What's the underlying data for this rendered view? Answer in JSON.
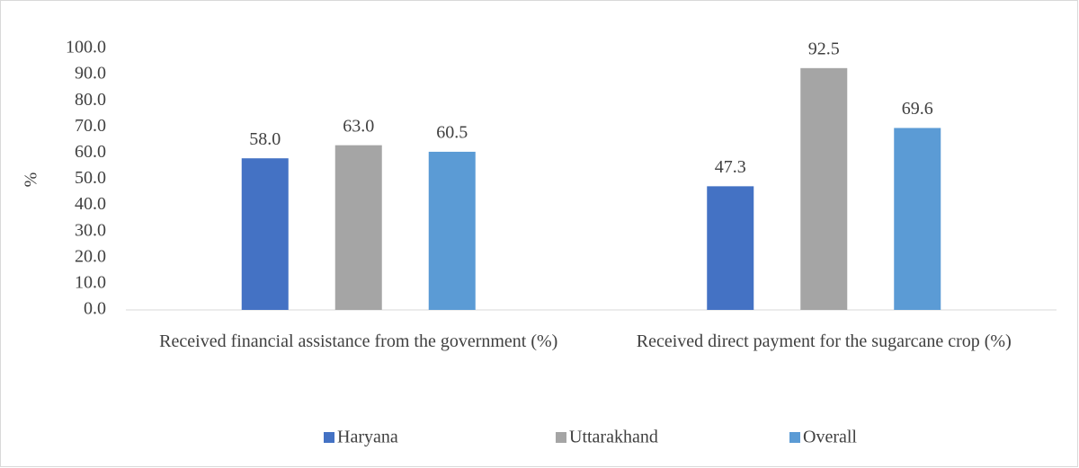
{
  "chart_data": {
    "type": "bar",
    "y_label": "%",
    "categories": [
      "Received financial assistance from the government (%)",
      "Received direct payment for the sugarcane crop (%)"
    ],
    "series": [
      {
        "name": "Haryana",
        "color": "#4472c4",
        "values": [
          58.0,
          47.3
        ],
        "value_labels": [
          "58.0",
          "47.3"
        ]
      },
      {
        "name": "Uttarakhand",
        "color": "#a5a5a5",
        "values": [
          63.0,
          92.5
        ],
        "value_labels": [
          "63.0",
          "92.5"
        ]
      },
      {
        "name": "Overall",
        "color": "#5b9bd5",
        "values": [
          60.5,
          69.6
        ],
        "value_labels": [
          "60.5",
          "69.6"
        ]
      }
    ],
    "ylim": [
      0,
      100
    ],
    "yticks": [
      {
        "value": 0,
        "label": "0.0"
      },
      {
        "value": 10,
        "label": "10.0"
      },
      {
        "value": 20,
        "label": "20.0"
      },
      {
        "value": 30,
        "label": "30.0"
      },
      {
        "value": 40,
        "label": "40.0"
      },
      {
        "value": 50,
        "label": "50.0"
      },
      {
        "value": 60,
        "label": "60.0"
      },
      {
        "value": 70,
        "label": "70.0"
      },
      {
        "value": 80,
        "label": "80.0"
      },
      {
        "value": 90,
        "label": "90.0"
      },
      {
        "value": 100,
        "label": "100.0"
      }
    ],
    "grid": false,
    "legend": "bottom"
  }
}
